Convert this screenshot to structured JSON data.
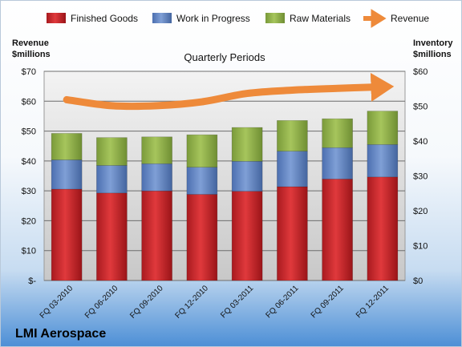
{
  "company": "LMI Aerospace",
  "chart_data": {
    "type": "bar",
    "stacked": true,
    "title": "Quarterly Periods",
    "left_axis_title": [
      "Revenue",
      "$millions"
    ],
    "right_axis_title": [
      "Inventory",
      "$millions"
    ],
    "categories": [
      "FQ 03-2010",
      "FQ 06-2010",
      "FQ 09-2010",
      "FQ 12-2010",
      "FQ 03-2011",
      "FQ 06-2011",
      "FQ 09-2011",
      "FQ 12-2011"
    ],
    "left_ylim": [
      0,
      70
    ],
    "right_ylim": [
      0,
      60
    ],
    "left_ticks": [
      "$-",
      "$10",
      "$20",
      "$30",
      "$40",
      "$50",
      "$60",
      "$70"
    ],
    "right_ticks": [
      "$0",
      "$10",
      "$20",
      "$30",
      "$40",
      "$50",
      "$60"
    ],
    "grid": true,
    "legend_position": "top",
    "series": [
      {
        "name": "Finished Goods",
        "axis": "right",
        "color": "#c0282c",
        "values": [
          26.2,
          25.1,
          25.7,
          24.7,
          25.6,
          26.9,
          29.1,
          29.7
        ]
      },
      {
        "name": "Work in Progress",
        "axis": "right",
        "color": "#5b7fc1",
        "values": [
          8.4,
          7.9,
          7.8,
          7.8,
          8.6,
          10.2,
          9.0,
          9.3
        ]
      },
      {
        "name": "Raw Materials",
        "axis": "right",
        "color": "#8fb04a",
        "values": [
          7.6,
          8.0,
          7.7,
          9.3,
          9.7,
          8.8,
          8.3,
          9.6
        ]
      }
    ],
    "line_series": {
      "name": "Revenue",
      "axis": "left",
      "color": "#ee8a3a",
      "values": [
        60.5,
        58.5,
        58.5,
        59.8,
        62.6,
        63.7,
        64.3,
        64.8
      ]
    }
  }
}
